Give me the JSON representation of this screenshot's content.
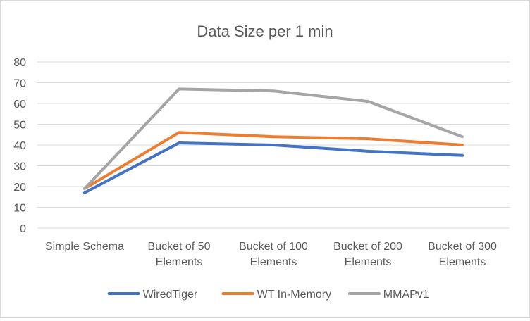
{
  "chart_data": {
    "type": "line",
    "title": "Data Size per 1 min",
    "xlabel": "",
    "ylabel": "",
    "categories": [
      [
        "Simple Schema"
      ],
      [
        "Bucket of 50",
        "Elements"
      ],
      [
        "Bucket of 100",
        "Elements"
      ],
      [
        "Bucket of 200",
        "Elements"
      ],
      [
        "Bucket of 300",
        "Elements"
      ]
    ],
    "ylim": [
      0,
      80
    ],
    "yticks": [
      "0",
      "10",
      "20",
      "30",
      "40",
      "50",
      "60",
      "70",
      "80"
    ],
    "grid": "horizontal",
    "legend_position": "bottom",
    "series": [
      {
        "name": "WiredTiger",
        "color": "#4472c4",
        "values": [
          17,
          41,
          40,
          37,
          35
        ]
      },
      {
        "name": "WT In-Memory",
        "color": "#ed7d31",
        "values": [
          19,
          46,
          44,
          43,
          40
        ]
      },
      {
        "name": "MMAPv1",
        "color": "#a5a5a5",
        "values": [
          19,
          67,
          66,
          61,
          44
        ]
      }
    ]
  }
}
